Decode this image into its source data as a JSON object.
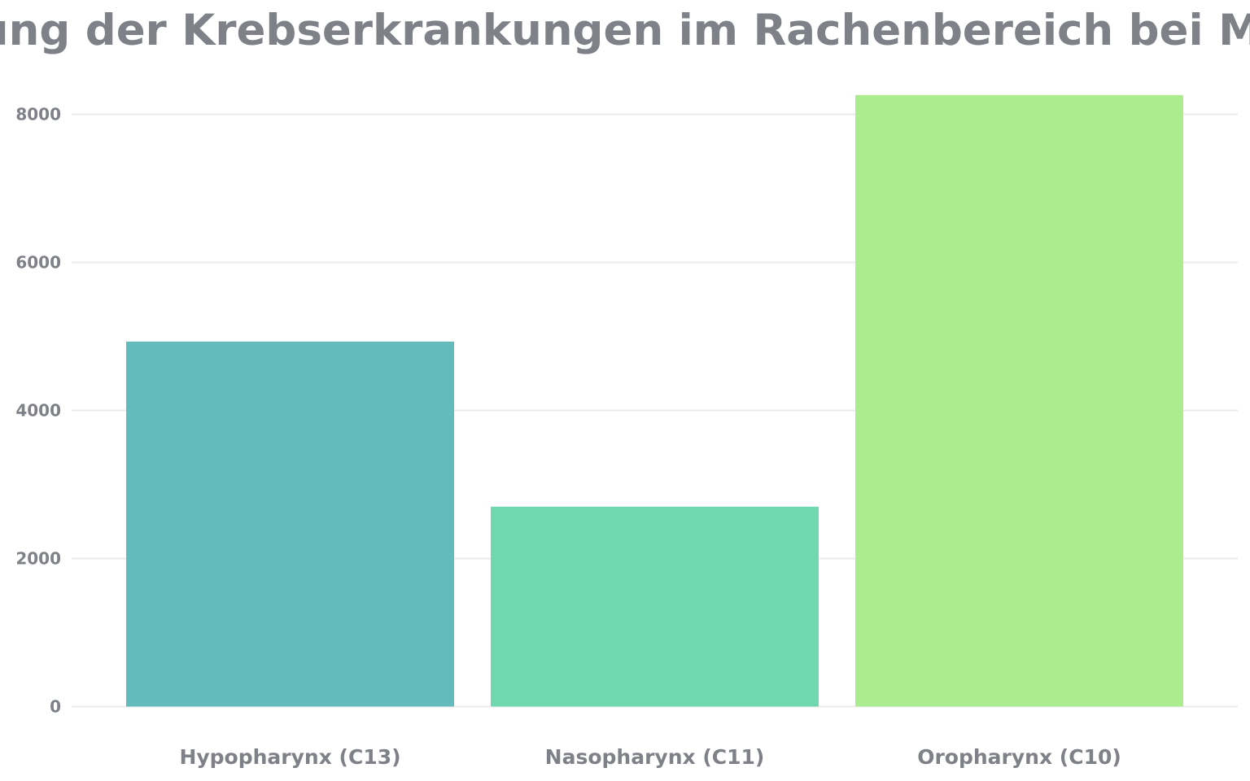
{
  "chart_data": {
    "type": "bar",
    "title": "Verteilung der Krebserkrankungen im Rachenbereich bei Männern",
    "categories": [
      "Hypopharynx (C13)",
      "Nasopharynx (C11)",
      "Oropharynx (C10)"
    ],
    "values": [
      4930,
      2700,
      8260
    ],
    "colors": [
      "#64bbbb",
      "#70d7af",
      "#abec8f"
    ],
    "xlabel": "",
    "ylabel": "",
    "ylim": [
      0,
      8500
    ],
    "yticks": [
      0,
      2000,
      4000,
      6000,
      8000
    ],
    "grid": true,
    "legend": "none",
    "text_color": "#7f8189",
    "grid_color": "#ebebeb"
  }
}
